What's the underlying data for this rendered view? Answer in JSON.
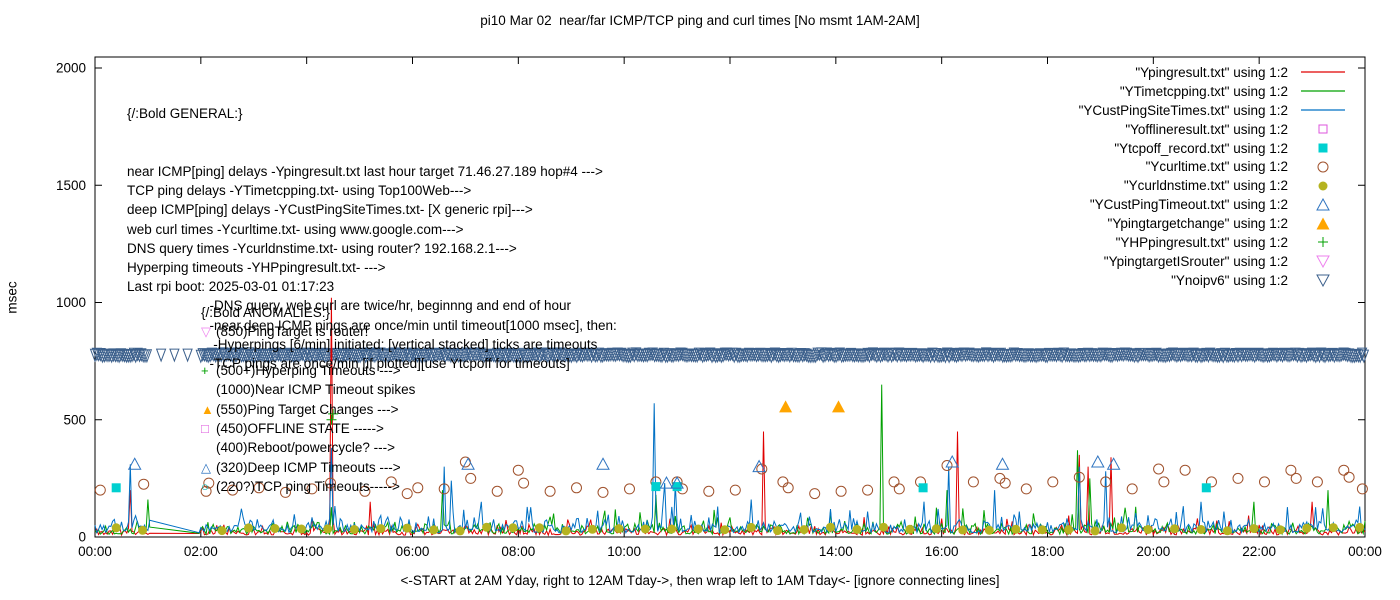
{
  "title": "pi10 Mar 02  near/far ICMP/TCP ping and curl times [No msmt 1AM-2AM]",
  "ylabel": "msec",
  "xlabel": "<-START at 2AM Yday, right to 12AM Tday->, then wrap left to 1AM Tday<- [ignore connecting lines]",
  "axes": {
    "x_ticks": [
      "00:00",
      "02:00",
      "04:00",
      "06:00",
      "08:00",
      "10:00",
      "12:00",
      "14:00",
      "16:00",
      "18:00",
      "20:00",
      "22:00",
      "00:00"
    ],
    "y_ticks": [
      0,
      500,
      1000,
      1500,
      2000
    ],
    "xlim": [
      0,
      24
    ],
    "ylim": [
      0,
      2000
    ]
  },
  "legend": [
    {
      "label": "\"Ypingresult.txt\" using 1:2",
      "marker": "line",
      "color": "#e00000"
    },
    {
      "label": "\"YTimetcpping.txt\" using 1:2",
      "marker": "line",
      "color": "#00a000"
    },
    {
      "label": "\"YCustPingSiteTimes.txt\" using 1:2",
      "marker": "line",
      "color": "#0070c4"
    },
    {
      "label": "\"Yofflineresult.txt\" using 1:2",
      "marker": "square-open",
      "color": "#dd55dd"
    },
    {
      "label": "\"Ytcpoff_record.txt\" using 1:2",
      "marker": "square-fill",
      "color": "#00d0d0"
    },
    {
      "label": "\"Ycurltime.txt\" using 1:2",
      "marker": "circle-open",
      "color": "#a0522d"
    },
    {
      "label": "\"Ycurldnstime.txt\" using 1:2",
      "marker": "circle-fill",
      "color": "#b5b320"
    },
    {
      "label": "\"YCustPingTimeout.txt\" using 1:2",
      "marker": "tri-up-open",
      "color": "#2f74c0"
    },
    {
      "label": "\"Ypingtargetchange\" using 1:2",
      "marker": "tri-up-fill",
      "color": "#ffa500"
    },
    {
      "label": "\"YHPpingresult.txt\" using 1:2",
      "marker": "plus",
      "color": "#00a000"
    },
    {
      "label": "\"YpingtargetISrouter\" using 1:2",
      "marker": "tri-down-open",
      "color": "#ee82ee"
    },
    {
      "label": "\"Ynoipv6\" using 1:2",
      "marker": "tri-down-open",
      "color": "#3c608c"
    }
  ],
  "annotations": {
    "general": {
      "heading": "{/:Bold GENERAL:}",
      "lines": [
        "near ICMP[ping] delays -Ypingresult.txt last hour target 71.46.27.189 hop#4 --->",
        "TCP ping delays -YTimetcpping.txt- using Top100Web--->",
        "deep ICMP[ping] delays -YCustPingSiteTimes.txt- [X generic rpi]--->",
        "web curl times -Ycurltime.txt- using www.google.com--->",
        "DNS query times -Ycurldnstime.txt- using router? 192.168.2.1--->",
        "Hyperping timeouts -YHPpingresult.txt- --->",
        "Last rpi boot: 2025-03-01 01:17:23",
        "                      -DNS query, web curl are twice/hr, beginnng and end of hour",
        "                      -near,deep ICMP pings are once/min until timeout[1000 msec], then:",
        "                       -Hyperpings [6/min] initiated; [vertical stacked] ticks are timeouts",
        "                      -TCP pings are once/min [if plotted][use Ytcpoff for timeouts]"
      ]
    },
    "anomalies": {
      "heading": "{/:Bold ANOMALIES:}",
      "items": [
        {
          "glyph": "▽",
          "color": "#ee82ee",
          "text": "(850)PingTarget is router!"
        },
        {
          "glyph": "+",
          "color": "#00a000",
          "text": "(500+)Hyperping Timeouts --->"
        },
        {
          "glyph": "",
          "color": "",
          "text": "(1000)Near ICMP Timeout spikes"
        },
        {
          "glyph": "▲",
          "color": "#ffa500",
          "text": "(550)Ping Target Changes --->"
        },
        {
          "glyph": "□",
          "color": "#dd55dd",
          "text": "(450)OFFLINE STATE ----->"
        },
        {
          "glyph": "",
          "color": "",
          "text": "(400)Reboot/powercycle? --->"
        },
        {
          "glyph": "△",
          "color": "#2f74c0",
          "text": "(320)Deep ICMP Timeouts --->"
        },
        {
          "glyph": "○",
          "color": "#00b0b0",
          "text": "(220?)TCP ping Timeouts----->"
        }
      ]
    }
  },
  "chart_data": {
    "type": "line",
    "x_unit": "hours",
    "xlim": [
      0,
      24
    ],
    "ylim": [
      0,
      2000
    ],
    "no_measurement_window": [
      1,
      2
    ],
    "lines": [
      {
        "name": "Ypingresult.txt",
        "color": "#e00000",
        "seed": 11,
        "base": 8,
        "jitter": 48,
        "spike_prob": 0.05,
        "minor_spike": 70,
        "spikes": [
          [
            0.67,
            200
          ],
          [
            4.48,
            1020
          ],
          [
            5.2,
            150
          ],
          [
            12.63,
            450
          ],
          [
            16.3,
            450
          ],
          [
            18.6,
            350
          ],
          [
            18.78,
            300
          ],
          [
            19.2,
            340
          ],
          [
            23.0,
            150
          ]
        ]
      },
      {
        "name": "YTimetcpping.txt",
        "color": "#00a000",
        "seed": 22,
        "base": 12,
        "jitter": 58,
        "spike_prob": 0.06,
        "minor_spike": 80,
        "spikes": [
          [
            1.0,
            160
          ],
          [
            6.55,
            200
          ],
          [
            10.6,
            180
          ],
          [
            14.85,
            650
          ],
          [
            16.1,
            200
          ],
          [
            18.55,
            370
          ],
          [
            18.8,
            250
          ],
          [
            21.9,
            150
          ],
          [
            23.3,
            200
          ]
        ]
      },
      {
        "name": "YCustPingSiteTimes.txt",
        "color": "#0070c4",
        "seed": 33,
        "base": 18,
        "jitter": 72,
        "spike_prob": 0.07,
        "minor_spike": 90,
        "spikes": [
          [
            0.65,
            310
          ],
          [
            4.45,
            380
          ],
          [
            6.6,
            300
          ],
          [
            6.72,
            240
          ],
          [
            7.3,
            150
          ],
          [
            10.58,
            570
          ],
          [
            10.75,
            230
          ],
          [
            10.95,
            230
          ],
          [
            12.4,
            160
          ],
          [
            16.15,
            300
          ],
          [
            17.0,
            200
          ],
          [
            18.6,
            300
          ],
          [
            19.1,
            280
          ],
          [
            20.9,
            150
          ],
          [
            23.9,
            130
          ]
        ]
      }
    ],
    "scatter": [
      {
        "name": "Ycurltime.txt",
        "marker": "circle-open",
        "color": "#a0522d",
        "points": [
          [
            0.1,
            200
          ],
          [
            0.92,
            225
          ],
          [
            2.1,
            195
          ],
          [
            2.15,
            230
          ],
          [
            2.6,
            200
          ],
          [
            3.1,
            210
          ],
          [
            3.6,
            190
          ],
          [
            4.1,
            205
          ],
          [
            4.45,
            230
          ],
          [
            5.1,
            195
          ],
          [
            5.6,
            235
          ],
          [
            5.9,
            185
          ],
          [
            6.1,
            210
          ],
          [
            6.6,
            205
          ],
          [
            7.0,
            320
          ],
          [
            7.1,
            250
          ],
          [
            7.6,
            195
          ],
          [
            8.0,
            285
          ],
          [
            8.1,
            230
          ],
          [
            8.6,
            195
          ],
          [
            9.1,
            210
          ],
          [
            9.6,
            190
          ],
          [
            10.1,
            205
          ],
          [
            10.6,
            235
          ],
          [
            11.0,
            235
          ],
          [
            11.1,
            205
          ],
          [
            11.6,
            195
          ],
          [
            12.1,
            200
          ],
          [
            12.6,
            290
          ],
          [
            13.0,
            235
          ],
          [
            13.1,
            210
          ],
          [
            13.6,
            185
          ],
          [
            14.1,
            195
          ],
          [
            14.6,
            200
          ],
          [
            15.1,
            235
          ],
          [
            15.2,
            205
          ],
          [
            15.6,
            235
          ],
          [
            16.1,
            305
          ],
          [
            16.6,
            235
          ],
          [
            17.1,
            250
          ],
          [
            17.2,
            230
          ],
          [
            17.6,
            205
          ],
          [
            18.1,
            235
          ],
          [
            18.6,
            255
          ],
          [
            19.1,
            235
          ],
          [
            19.6,
            205
          ],
          [
            20.1,
            290
          ],
          [
            20.2,
            235
          ],
          [
            20.6,
            285
          ],
          [
            21.1,
            235
          ],
          [
            21.6,
            250
          ],
          [
            22.1,
            235
          ],
          [
            22.6,
            285
          ],
          [
            22.7,
            250
          ],
          [
            23.1,
            235
          ],
          [
            23.6,
            285
          ],
          [
            23.7,
            255
          ],
          [
            23.95,
            205
          ]
        ]
      },
      {
        "name": "Ycurldnstime.txt",
        "marker": "circle-fill",
        "color": "#b5b320",
        "gen": {
          "start": 0.4,
          "step": 0.5,
          "end": 23.9,
          "base": 26,
          "jitter": 16,
          "seed": 44,
          "skip": [
            1,
            2
          ]
        }
      },
      {
        "name": "Ytcpoff_record.txt",
        "marker": "square-fill",
        "color": "#00d0d0",
        "points": [
          [
            0.4,
            210
          ],
          [
            10.6,
            215
          ],
          [
            11.0,
            215
          ],
          [
            15.65,
            210
          ],
          [
            21.0,
            210
          ]
        ]
      },
      {
        "name": "YCustPingTimeout.txt",
        "marker": "tri-up-open",
        "color": "#2f74c0",
        "points": [
          [
            0.75,
            310
          ],
          [
            7.05,
            310
          ],
          [
            9.6,
            310
          ],
          [
            10.8,
            230
          ],
          [
            11.0,
            230
          ],
          [
            12.55,
            300
          ],
          [
            16.2,
            320
          ],
          [
            17.15,
            310
          ],
          [
            18.95,
            320
          ],
          [
            19.25,
            310
          ]
        ]
      },
      {
        "name": "Ypingtargetchange",
        "marker": "tri-up-fill",
        "color": "#ffa500",
        "points": [
          [
            13.05,
            555
          ],
          [
            14.05,
            555
          ]
        ]
      },
      {
        "name": "YHPpingresult.txt",
        "marker": "plus",
        "color": "#00a000",
        "points": [
          [
            4.47,
            500
          ],
          [
            4.5,
            525
          ]
        ]
      },
      {
        "name": "Yofflineresult.txt",
        "marker": "square-open",
        "color": "#dd55dd",
        "points": []
      },
      {
        "name": "YpingtargetISrouter",
        "marker": "tri-down-open",
        "color": "#ee82ee",
        "points": []
      }
    ],
    "band": {
      "name": "Ynoipv6",
      "marker": "tri-down-open",
      "color": "#3c608c",
      "value": 780,
      "value_jitter": 10,
      "step": 0.035,
      "ranges": [
        [
          0,
          1.0
        ],
        [
          2.0,
          24
        ]
      ],
      "sparse": {
        "range": [
          1.0,
          2.0
        ],
        "step": 0.25
      },
      "seed": 55
    }
  }
}
